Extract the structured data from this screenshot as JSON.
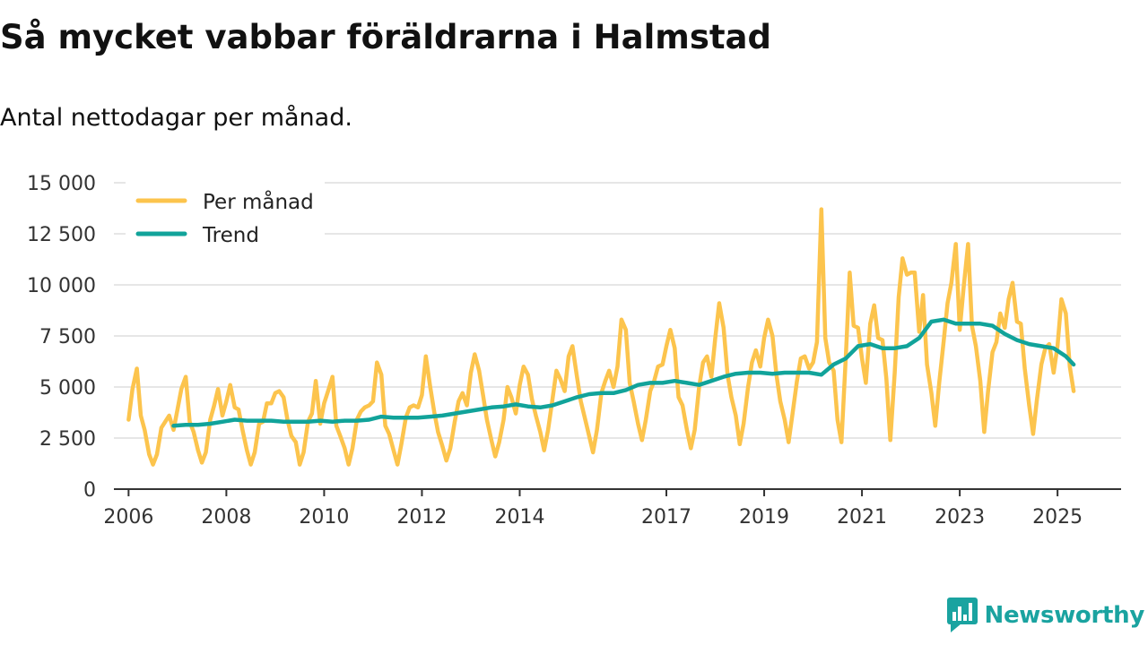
{
  "title": "Så mycket vabbar föräldrarna i Halmstad",
  "subtitle": "Antal nettodagar per månad.",
  "brand": {
    "name": "Newsworthy",
    "icon": "bar-chart-speech-bubble-icon"
  },
  "colors": {
    "monthly": "#fcc44d",
    "trend": "#11a39a",
    "grid": "#dddddd",
    "axis": "#333333",
    "brand": "#1aa3a0"
  },
  "chart_data": {
    "type": "line",
    "title": "Så mycket vabbar föräldrarna i Halmstad",
    "subtitle": "Antal nettodagar per månad.",
    "xlabel": "",
    "ylabel": "",
    "xlim": [
      2005.7,
      2026.3
    ],
    "ylim": [
      0,
      15000
    ],
    "yticks": [
      0,
      2500,
      5000,
      7500,
      10000,
      12500,
      15000
    ],
    "ytick_labels": [
      "0",
      "2 500",
      "5 000",
      "7 500",
      "10 000",
      "12 500",
      "15 000"
    ],
    "xticks": [
      2006,
      2008,
      2010,
      2012,
      2014,
      2017,
      2019,
      2021,
      2023,
      2025
    ],
    "xtick_labels": [
      "2006",
      "2008",
      "2010",
      "2012",
      "2014",
      "2017",
      "2019",
      "2021",
      "2023",
      "2025"
    ],
    "grid": true,
    "legend_position": "top-left",
    "series": [
      {
        "name": "Per månad",
        "x": [
          2006.0,
          2006.08,
          2006.17,
          2006.25,
          2006.33,
          2006.42,
          2006.5,
          2006.58,
          2006.67,
          2006.75,
          2006.83,
          2006.92,
          2007.0,
          2007.08,
          2007.17,
          2007.25,
          2007.33,
          2007.42,
          2007.5,
          2007.58,
          2007.67,
          2007.75,
          2007.83,
          2007.92,
          2008.0,
          2008.08,
          2008.17,
          2008.25,
          2008.33,
          2008.42,
          2008.5,
          2008.58,
          2008.67,
          2008.75,
          2008.83,
          2008.92,
          2009.0,
          2009.08,
          2009.17,
          2009.25,
          2009.33,
          2009.42,
          2009.5,
          2009.58,
          2009.67,
          2009.75,
          2009.83,
          2009.92,
          2010.0,
          2010.08,
          2010.17,
          2010.25,
          2010.33,
          2010.42,
          2010.5,
          2010.58,
          2010.67,
          2010.75,
          2010.83,
          2010.92,
          2011.0,
          2011.08,
          2011.17,
          2011.25,
          2011.33,
          2011.42,
          2011.5,
          2011.58,
          2011.67,
          2011.75,
          2011.83,
          2011.92,
          2012.0,
          2012.08,
          2012.17,
          2012.25,
          2012.33,
          2012.42,
          2012.5,
          2012.58,
          2012.67,
          2012.75,
          2012.83,
          2012.92,
          2013.0,
          2013.08,
          2013.17,
          2013.25,
          2013.33,
          2013.42,
          2013.5,
          2013.58,
          2013.67,
          2013.75,
          2013.83,
          2013.92,
          2014.0,
          2014.08,
          2014.17,
          2014.25,
          2014.33,
          2014.42,
          2014.5,
          2014.58,
          2014.67,
          2014.75,
          2014.83,
          2014.92,
          2015.0,
          2015.08,
          2015.17,
          2015.25,
          2015.33,
          2015.42,
          2015.5,
          2015.58,
          2015.67,
          2015.75,
          2015.83,
          2015.92,
          2016.0,
          2016.08,
          2016.17,
          2016.25,
          2016.33,
          2016.42,
          2016.5,
          2016.58,
          2016.67,
          2016.75,
          2016.83,
          2016.92,
          2017.0,
          2017.08,
          2017.17,
          2017.25,
          2017.33,
          2017.42,
          2017.5,
          2017.58,
          2017.67,
          2017.75,
          2017.83,
          2017.92,
          2018.0,
          2018.08,
          2018.17,
          2018.25,
          2018.33,
          2018.42,
          2018.5,
          2018.58,
          2018.67,
          2018.75,
          2018.83,
          2018.92,
          2019.0,
          2019.08,
          2019.17,
          2019.25,
          2019.33,
          2019.42,
          2019.5,
          2019.58,
          2019.67,
          2019.75,
          2019.83,
          2019.92,
          2020.0,
          2020.08,
          2020.17,
          2020.25,
          2020.33,
          2020.42,
          2020.5,
          2020.58,
          2020.67,
          2020.75,
          2020.83,
          2020.92,
          2021.0,
          2021.08,
          2021.17,
          2021.25,
          2021.33,
          2021.42,
          2021.5,
          2021.58,
          2021.67,
          2021.75,
          2021.83,
          2021.92,
          2022.0,
          2022.08,
          2022.17,
          2022.25,
          2022.33,
          2022.42,
          2022.5,
          2022.58,
          2022.67,
          2022.75,
          2022.83,
          2022.92,
          2023.0,
          2023.08,
          2023.17,
          2023.25,
          2023.33,
          2023.42,
          2023.5,
          2023.58,
          2023.67,
          2023.75,
          2023.83,
          2023.92,
          2024.0,
          2024.08,
          2024.17,
          2024.25,
          2024.33,
          2024.42,
          2024.5,
          2024.58,
          2024.67,
          2024.75,
          2024.83,
          2024.92,
          2025.0,
          2025.08,
          2025.17,
          2025.25,
          2025.33
        ],
        "values": [
          3400,
          4900,
          5900,
          3600,
          2900,
          1700,
          1200,
          1700,
          3000,
          3300,
          3600,
          2900,
          3900,
          4900,
          5500,
          3300,
          2800,
          1900,
          1300,
          1800,
          3400,
          4100,
          4900,
          3600,
          4300,
          5100,
          4000,
          3900,
          2900,
          1900,
          1200,
          1800,
          3200,
          3300,
          4200,
          4200,
          4700,
          4800,
          4500,
          3400,
          2600,
          2300,
          1200,
          1800,
          3300,
          3700,
          5300,
          3200,
          4200,
          4800,
          5500,
          3100,
          2600,
          2000,
          1200,
          2000,
          3400,
          3800,
          4000,
          4100,
          4300,
          6200,
          5600,
          3100,
          2700,
          1900,
          1200,
          2200,
          3500,
          4000,
          4100,
          4000,
          4600,
          6500,
          5000,
          3800,
          2800,
          2100,
          1400,
          2000,
          3300,
          4300,
          4700,
          4100,
          5700,
          6600,
          5800,
          4600,
          3400,
          2400,
          1600,
          2300,
          3400,
          5000,
          4500,
          3700,
          5100,
          6000,
          5600,
          4400,
          3600,
          2800,
          1900,
          2900,
          4400,
          5800,
          5400,
          4800,
          6500,
          7000,
          5500,
          4300,
          3500,
          2600,
          1800,
          2900,
          4700,
          5300,
          5800,
          5000,
          6000,
          8300,
          7800,
          5200,
          4300,
          3200,
          2400,
          3400,
          4800,
          5300,
          6000,
          6100,
          7000,
          7800,
          6900,
          4500,
          4100,
          2900,
          2000,
          2900,
          5000,
          6200,
          6500,
          5500,
          7400,
          9100,
          7900,
          5600,
          4500,
          3600,
          2200,
          3200,
          5000,
          6200,
          6800,
          6000,
          7400,
          8300,
          7500,
          5600,
          4300,
          3400,
          2300,
          3700,
          5300,
          6400,
          6500,
          5900,
          6200,
          7200,
          13700,
          7400,
          6200,
          5800,
          3400,
          2300,
          6500,
          10600,
          8000,
          7900,
          6400,
          5200,
          8100,
          9000,
          7400,
          7300,
          5400,
          2400,
          5700,
          9400,
          11300,
          10500,
          10600,
          10600,
          7700,
          9500,
          6100,
          4700,
          3100,
          5200,
          7200,
          9100,
          10100,
          12000,
          7800,
          9900,
          12000,
          8000,
          7000,
          5300,
          2800,
          4800,
          6700,
          7200,
          8600,
          7900,
          9300,
          10100,
          8200,
          8100,
          5900,
          4100,
          2700,
          4400,
          6100,
          6900,
          7100,
          5700,
          7000,
          9300,
          8600,
          6000,
          4800
        ]
      },
      {
        "name": "Trend",
        "x": [
          2006.92,
          2007.17,
          2007.42,
          2007.67,
          2007.92,
          2008.17,
          2008.42,
          2008.67,
          2008.92,
          2009.17,
          2009.42,
          2009.67,
          2009.92,
          2010.17,
          2010.42,
          2010.67,
          2010.92,
          2011.17,
          2011.42,
          2011.67,
          2011.92,
          2012.17,
          2012.42,
          2012.67,
          2012.92,
          2013.17,
          2013.42,
          2013.67,
          2013.92,
          2014.17,
          2014.42,
          2014.67,
          2014.92,
          2015.17,
          2015.42,
          2015.67,
          2015.92,
          2016.17,
          2016.42,
          2016.67,
          2016.92,
          2017.17,
          2017.42,
          2017.67,
          2017.92,
          2018.17,
          2018.42,
          2018.67,
          2018.92,
          2019.17,
          2019.42,
          2019.67,
          2019.92,
          2020.17,
          2020.42,
          2020.67,
          2020.92,
          2021.17,
          2021.42,
          2021.67,
          2021.92,
          2022.17,
          2022.42,
          2022.67,
          2022.92,
          2023.17,
          2023.42,
          2023.67,
          2023.92,
          2024.17,
          2024.42,
          2024.67,
          2024.92,
          2025.17,
          2025.33
        ],
        "values": [
          3100,
          3150,
          3150,
          3200,
          3300,
          3400,
          3350,
          3350,
          3350,
          3300,
          3300,
          3300,
          3350,
          3300,
          3350,
          3350,
          3400,
          3550,
          3500,
          3500,
          3500,
          3550,
          3600,
          3700,
          3800,
          3900,
          4000,
          4050,
          4150,
          4050,
          4000,
          4100,
          4300,
          4500,
          4650,
          4700,
          4700,
          4850,
          5100,
          5200,
          5200,
          5300,
          5200,
          5100,
          5300,
          5500,
          5650,
          5700,
          5700,
          5650,
          5700,
          5700,
          5700,
          5600,
          6100,
          6400,
          7000,
          7100,
          6900,
          6900,
          7000,
          7400,
          8200,
          8300,
          8100,
          8100,
          8100,
          8000,
          7600,
          7300,
          7100,
          7000,
          6900,
          6500,
          6100
        ]
      }
    ]
  }
}
